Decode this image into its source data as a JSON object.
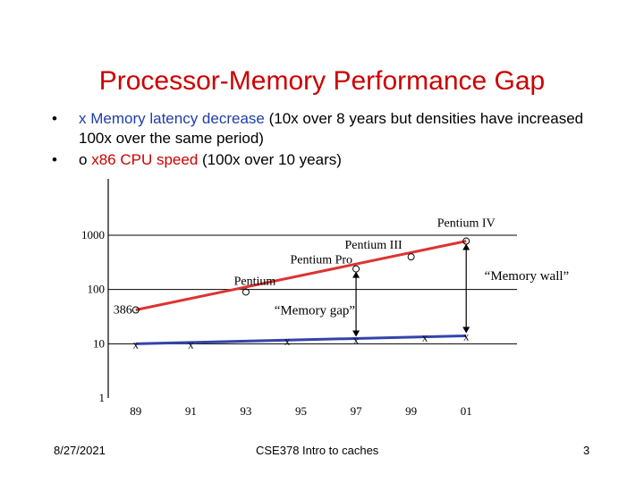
{
  "slide": {
    "title": "Processor-Memory Performance Gap",
    "bullets": [
      {
        "marker": "•",
        "symbol": "x",
        "highlight": "Memory latency decrease",
        "rest": " (10x over 8 years but densities have increased 100x over the same period)"
      },
      {
        "marker": "•",
        "symbol": "o",
        "highlight": "x86 CPU speed",
        "rest": " (100x over 10 years)"
      }
    ],
    "footer": {
      "date": "8/27/2021",
      "course": "CSE378 Intro to caches",
      "page": "3"
    }
  },
  "colors": {
    "title": "#cc0000",
    "memory": "#3344aa",
    "cpu": "#dd3333",
    "axis": "#000000"
  },
  "chart_data": {
    "type": "line",
    "title": "",
    "xlabel": "",
    "ylabel": "",
    "yscale": "log",
    "ylim": [
      1,
      1000
    ],
    "xlim": [
      1988,
      2002
    ],
    "grid": false,
    "x_ticks": [
      "89",
      "91",
      "93",
      "95",
      "97",
      "99",
      "01"
    ],
    "y_ticks": [
      "1000",
      "100",
      "10",
      "1"
    ],
    "series": [
      {
        "name": "x86 CPU speed",
        "marker": "o",
        "color": "#dd3333",
        "points": [
          {
            "x": 1989,
            "y": 42,
            "label": "386"
          },
          {
            "x": 1993,
            "y": 90,
            "label": "Pentium"
          },
          {
            "x": 1997,
            "y": 240,
            "label": "Pentium Pro"
          },
          {
            "x": 1999,
            "y": 400,
            "label": "Pentium III"
          },
          {
            "x": 2001,
            "y": 780,
            "label": "Pentium IV"
          }
        ]
      },
      {
        "name": "Memory latency decrease",
        "marker": "x",
        "color": "#3344aa",
        "points": [
          {
            "x": 1989,
            "y": 10
          },
          {
            "x": 1991,
            "y": 10
          },
          {
            "x": 1994.5,
            "y": 11.5
          },
          {
            "x": 1997,
            "y": 12
          },
          {
            "x": 1999.5,
            "y": 13.5
          },
          {
            "x": 2001,
            "y": 14
          }
        ]
      }
    ],
    "annotations": [
      {
        "text": "“Memory gap”",
        "x": 1995.5,
        "y": 35
      },
      {
        "text": "“Memory wall”",
        "x": 2003.2,
        "y": 150
      }
    ],
    "gap_arrows": [
      {
        "x": 1997,
        "from": 12,
        "to": 240
      },
      {
        "x": 2001,
        "from": 14,
        "to": 780
      }
    ]
  }
}
